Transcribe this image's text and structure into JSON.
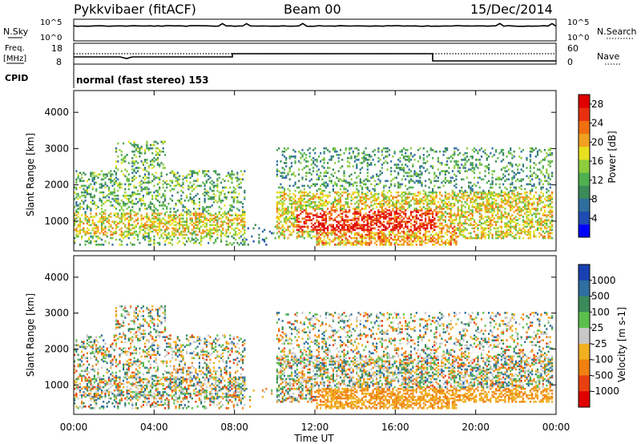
{
  "header": {
    "station": "Pykkvibaer (fitACF)",
    "beam": "Beam 00",
    "date": "15/Dec/2014"
  },
  "labels": {
    "nsky": "N.Sky",
    "nsearch": "N.Search",
    "freq_line1": "Freq.",
    "freq_line2": "[MHz]",
    "nave": "Nave",
    "cpid": "CPID",
    "cpid_value": "normal (fast stereo) 153",
    "ten5": "10^5",
    "ten0": "10^0",
    "f18": "18",
    "f8": "8",
    "n60": "60",
    "n0": "0"
  },
  "chart_data": [
    {
      "type": "heatmap",
      "title": "",
      "xlabel": "Time UT",
      "ylabel": "Slant Range [km]",
      "x_ticks": [
        "00:00",
        "04:00",
        "08:00",
        "12:00",
        "16:00",
        "20:00",
        "00:00"
      ],
      "y_ticks": [
        "1000",
        "2000",
        "3000",
        "4000"
      ],
      "ylim": [
        180,
        4600
      ],
      "colorbar": {
        "label": "Power [dB]",
        "ticks": [
          "4",
          "8",
          "12",
          "16",
          "20",
          "24",
          "28"
        ],
        "range": [
          0,
          30
        ],
        "colors": [
          "#0000ff",
          "#1e4cb4",
          "#2e6e9e",
          "#3a8a5a",
          "#4fb04f",
          "#8ccc3c",
          "#e8e01e",
          "#f0a020",
          "#f07010",
          "#e83010",
          "#e00000"
        ]
      }
    },
    {
      "type": "heatmap",
      "title": "",
      "xlabel": "Time UT",
      "ylabel": "Slant Range [km]",
      "x_ticks": [
        "00:00",
        "04:00",
        "08:00",
        "12:00",
        "16:00",
        "20:00",
        "00:00"
      ],
      "y_ticks": [
        "1000",
        "2000",
        "3000",
        "4000"
      ],
      "ylim": [
        180,
        4600
      ],
      "colorbar": {
        "label": "Velocity [m s-1]",
        "ticks": [
          "1000",
          "500",
          "100",
          "25",
          "-25",
          "-100",
          "-500",
          "-1000"
        ],
        "colors": [
          "#1840b0",
          "#2e6ea0",
          "#3a8a5a",
          "#5cc04c",
          "#c8c8c8",
          "#f0b020",
          "#f08010",
          "#e84010",
          "#e00000"
        ]
      }
    }
  ]
}
